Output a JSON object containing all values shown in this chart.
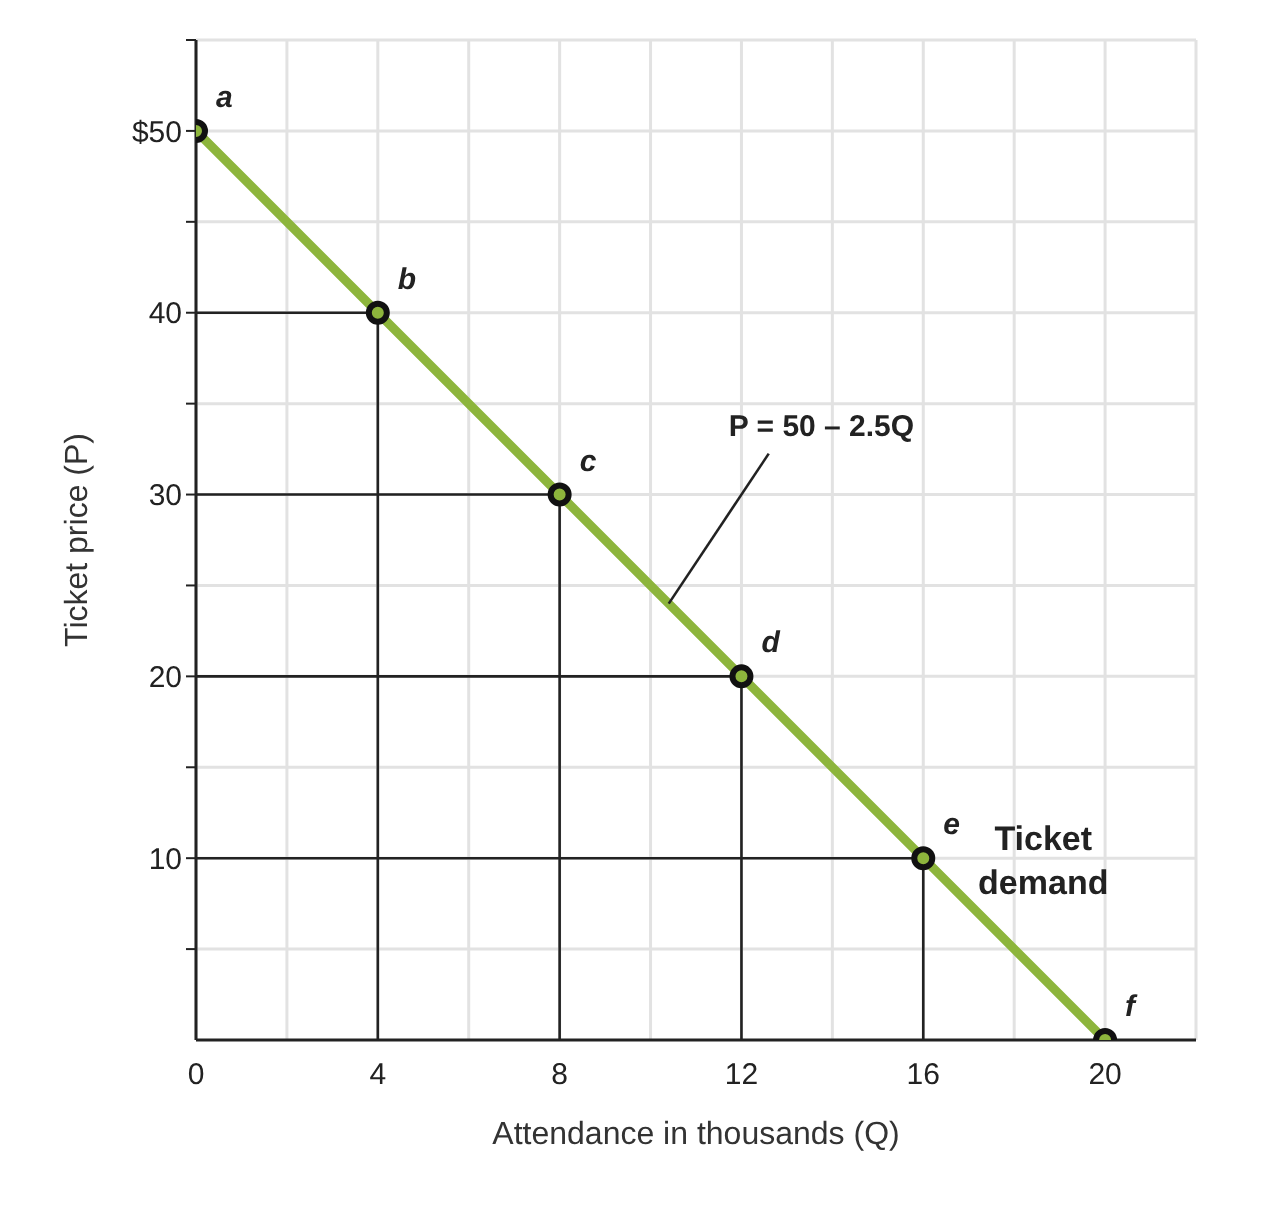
{
  "chart_data": {
    "type": "line",
    "xlabel": "Attendance in thousands (Q)",
    "ylabel": "Ticket price (P)",
    "xlim": [
      0,
      22
    ],
    "ylim": [
      0,
      55
    ],
    "xticks": [
      0,
      {
        "value": 2,
        "label": null
      },
      4,
      {
        "value": 6,
        "label": null
      },
      8,
      {
        "value": 10,
        "label": null
      },
      12,
      {
        "value": 14,
        "label": null
      },
      16,
      {
        "value": 18,
        "label": null
      },
      20,
      {
        "value": 22,
        "label": null
      }
    ],
    "yticks": [
      {
        "value": 5,
        "label": null
      },
      10,
      {
        "value": 15,
        "label": null
      },
      20,
      {
        "value": 25,
        "label": null
      },
      30,
      {
        "value": 35,
        "label": null
      },
      40,
      {
        "value": 45,
        "label": null
      },
      {
        "value": 50,
        "label": "$50"
      },
      {
        "value": 55,
        "label": null
      }
    ],
    "grid": true,
    "marker": "circle",
    "line_style": "solid",
    "series": [
      {
        "type": "line",
        "color": "#222222",
        "x": [
          0,
          4,
          4
        ],
        "values": [
          40,
          40,
          0
        ],
        "marker": "none"
      },
      {
        "type": "line",
        "color": "#222222",
        "x": [
          0,
          8,
          8
        ],
        "values": [
          30,
          30,
          0
        ],
        "marker": "none"
      },
      {
        "type": "line",
        "color": "#222222",
        "x": [
          0,
          12,
          12
        ],
        "values": [
          20,
          20,
          0
        ],
        "marker": "none"
      },
      {
        "type": "line",
        "color": "#222222",
        "x": [
          0,
          16,
          16
        ],
        "values": [
          10,
          10,
          0
        ],
        "marker": "none"
      },
      {
        "name": "Ticket demand",
        "color": "#8db53c",
        "x": [
          0,
          4,
          8,
          12,
          16,
          20
        ],
        "values": [
          50,
          40,
          30,
          20,
          10,
          0
        ]
      }
    ],
    "annotations": [
      {
        "text": "a",
        "x": 0,
        "y": 50
      },
      {
        "text": "b",
        "x": 4,
        "y": 40
      },
      {
        "text": "c",
        "x": 8,
        "y": 30
      },
      {
        "text": "d",
        "x": 12,
        "y": 20
      },
      {
        "text": "e",
        "x": 16,
        "y": 10
      },
      {
        "text": "f",
        "x": 20,
        "y": 0
      },
      {
        "text": "P = 50 – 2.5Q",
        "x": 10.4,
        "y": 24
      }
    ]
  }
}
